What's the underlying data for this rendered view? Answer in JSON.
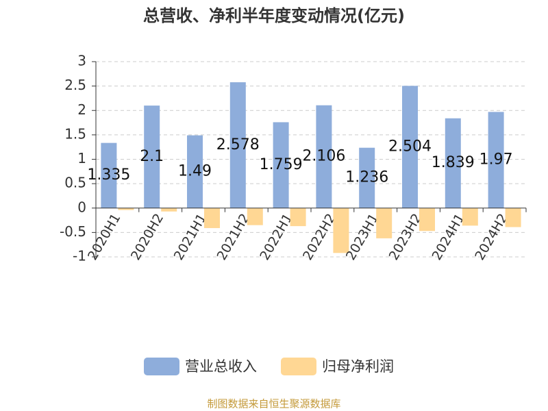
{
  "chart_data": {
    "type": "bar",
    "title": "总营收、净利半年度变动情况(亿元)",
    "categories": [
      "2020H1",
      "2020H2",
      "2021H1",
      "2021H2",
      "2022H1",
      "2022H2",
      "2023H1",
      "2023H2",
      "2024H1",
      "2024H2"
    ],
    "series": [
      {
        "name": "营业总收入",
        "color": "#8eaddb",
        "values": [
          1.335,
          2.1,
          1.49,
          2.578,
          1.759,
          2.106,
          1.236,
          2.504,
          1.839,
          1.97
        ],
        "show_labels": true
      },
      {
        "name": "归母净利润",
        "color": "#ffd794",
        "values": [
          -0.04,
          -0.07,
          -0.41,
          -0.35,
          -0.37,
          -0.92,
          -0.62,
          -0.47,
          -0.36,
          -0.39
        ],
        "show_labels": false
      }
    ],
    "ylim": [
      -1,
      3
    ],
    "yticks": [
      -1,
      -0.5,
      0,
      0.5,
      1,
      1.5,
      2,
      2.5,
      3
    ],
    "grid": true,
    "legend": "bottom",
    "source": "制图数据来自恒生聚源数据库"
  }
}
